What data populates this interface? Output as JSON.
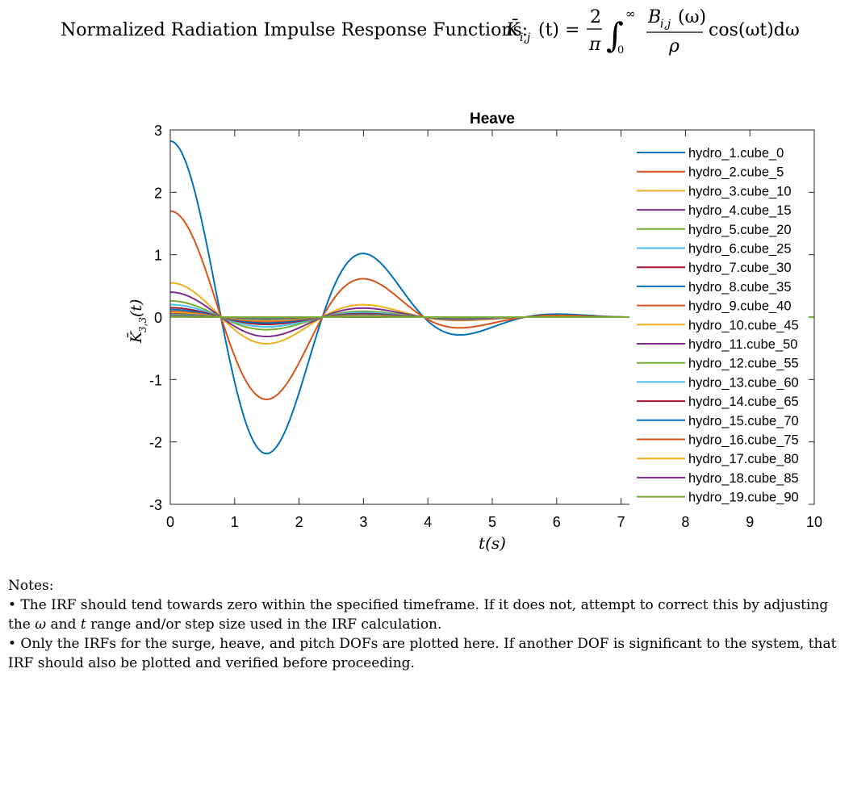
{
  "header": {
    "prefix": "Normalized Radiation Impulse Response Functions:",
    "lhs": "K̄",
    "lhs_sub": "i,j",
    "lhs_arg": "(t) =",
    "frac_num": "2",
    "frac_den": "π",
    "int_upper": "∞",
    "int_lower": "0",
    "integrand_num": "B",
    "integrand_num_sub": "i,j",
    "integrand_num_arg": "(ω)",
    "integrand_den": "ρ",
    "tail": "cos(ωt)dω"
  },
  "chart_data": {
    "type": "line",
    "title": "Heave",
    "xlabel": "t(s)",
    "ylabel_main": "K̄",
    "ylabel_sub": "3,3",
    "ylabel_arg": "(t)",
    "xlim": [
      0,
      10
    ],
    "ylim": [
      -3,
      3
    ],
    "xticks": [
      "0",
      "1",
      "2",
      "3",
      "4",
      "5",
      "6",
      "7",
      "8",
      "9",
      "10"
    ],
    "yticks": [
      "3",
      "2",
      "1",
      "0",
      "-1",
      "-2",
      "-3"
    ],
    "legend_position": "right",
    "series": [
      {
        "name": "hydro_1.cube_0",
        "color": "#0072BD",
        "peak": 2.82
      },
      {
        "name": "hydro_2.cube_5",
        "color": "#D95319",
        "peak": 1.7
      },
      {
        "name": "hydro_3.cube_10",
        "color": "#EDB120",
        "peak": 0.55
      },
      {
        "name": "hydro_4.cube_15",
        "color": "#7E2F8E",
        "peak": 0.4
      },
      {
        "name": "hydro_5.cube_20",
        "color": "#77AC30",
        "peak": 0.26
      },
      {
        "name": "hydro_6.cube_25",
        "color": "#4DBEEE",
        "peak": 0.2
      },
      {
        "name": "hydro_7.cube_30",
        "color": "#A2142F",
        "peak": 0.15
      },
      {
        "name": "hydro_8.cube_35",
        "color": "#0072BD",
        "peak": 0.12
      },
      {
        "name": "hydro_9.cube_40",
        "color": "#D95319",
        "peak": 0.09
      },
      {
        "name": "hydro_10.cube_45",
        "color": "#EDB120",
        "peak": 0.07
      },
      {
        "name": "hydro_11.cube_50",
        "color": "#7E2F8E",
        "peak": 0.05
      },
      {
        "name": "hydro_12.cube_55",
        "color": "#77AC30",
        "peak": 0.04
      },
      {
        "name": "hydro_13.cube_60",
        "color": "#4DBEEE",
        "peak": 0.03
      },
      {
        "name": "hydro_14.cube_65",
        "color": "#A2142F",
        "peak": 0.02
      },
      {
        "name": "hydro_15.cube_70",
        "color": "#0072BD",
        "peak": 0.015
      },
      {
        "name": "hydro_16.cube_75",
        "color": "#D95319",
        "peak": 0.01
      },
      {
        "name": "hydro_17.cube_80",
        "color": "#EDB120",
        "peak": 0.008
      },
      {
        "name": "hydro_18.cube_85",
        "color": "#7E2F8E",
        "peak": 0.005
      },
      {
        "name": "hydro_19.cube_90",
        "color": "#77AC30",
        "peak": 0.003
      }
    ]
  },
  "notes": {
    "heading": "Notes:",
    "bullet1_a": "• The IRF should tend towards zero within the specified timeframe. If it does not, attempt to correct this by adjusting the ",
    "bullet1_w": "ω",
    "bullet1_b": " and ",
    "bullet1_t": "t",
    "bullet1_c": " range and/or step size used in the IRF calculation.",
    "bullet2": "• Only the IRFs for the surge, heave, and pitch DOFs are plotted here. If another DOF is significant to the system, that IRF should also be plotted and verified before proceeding."
  }
}
